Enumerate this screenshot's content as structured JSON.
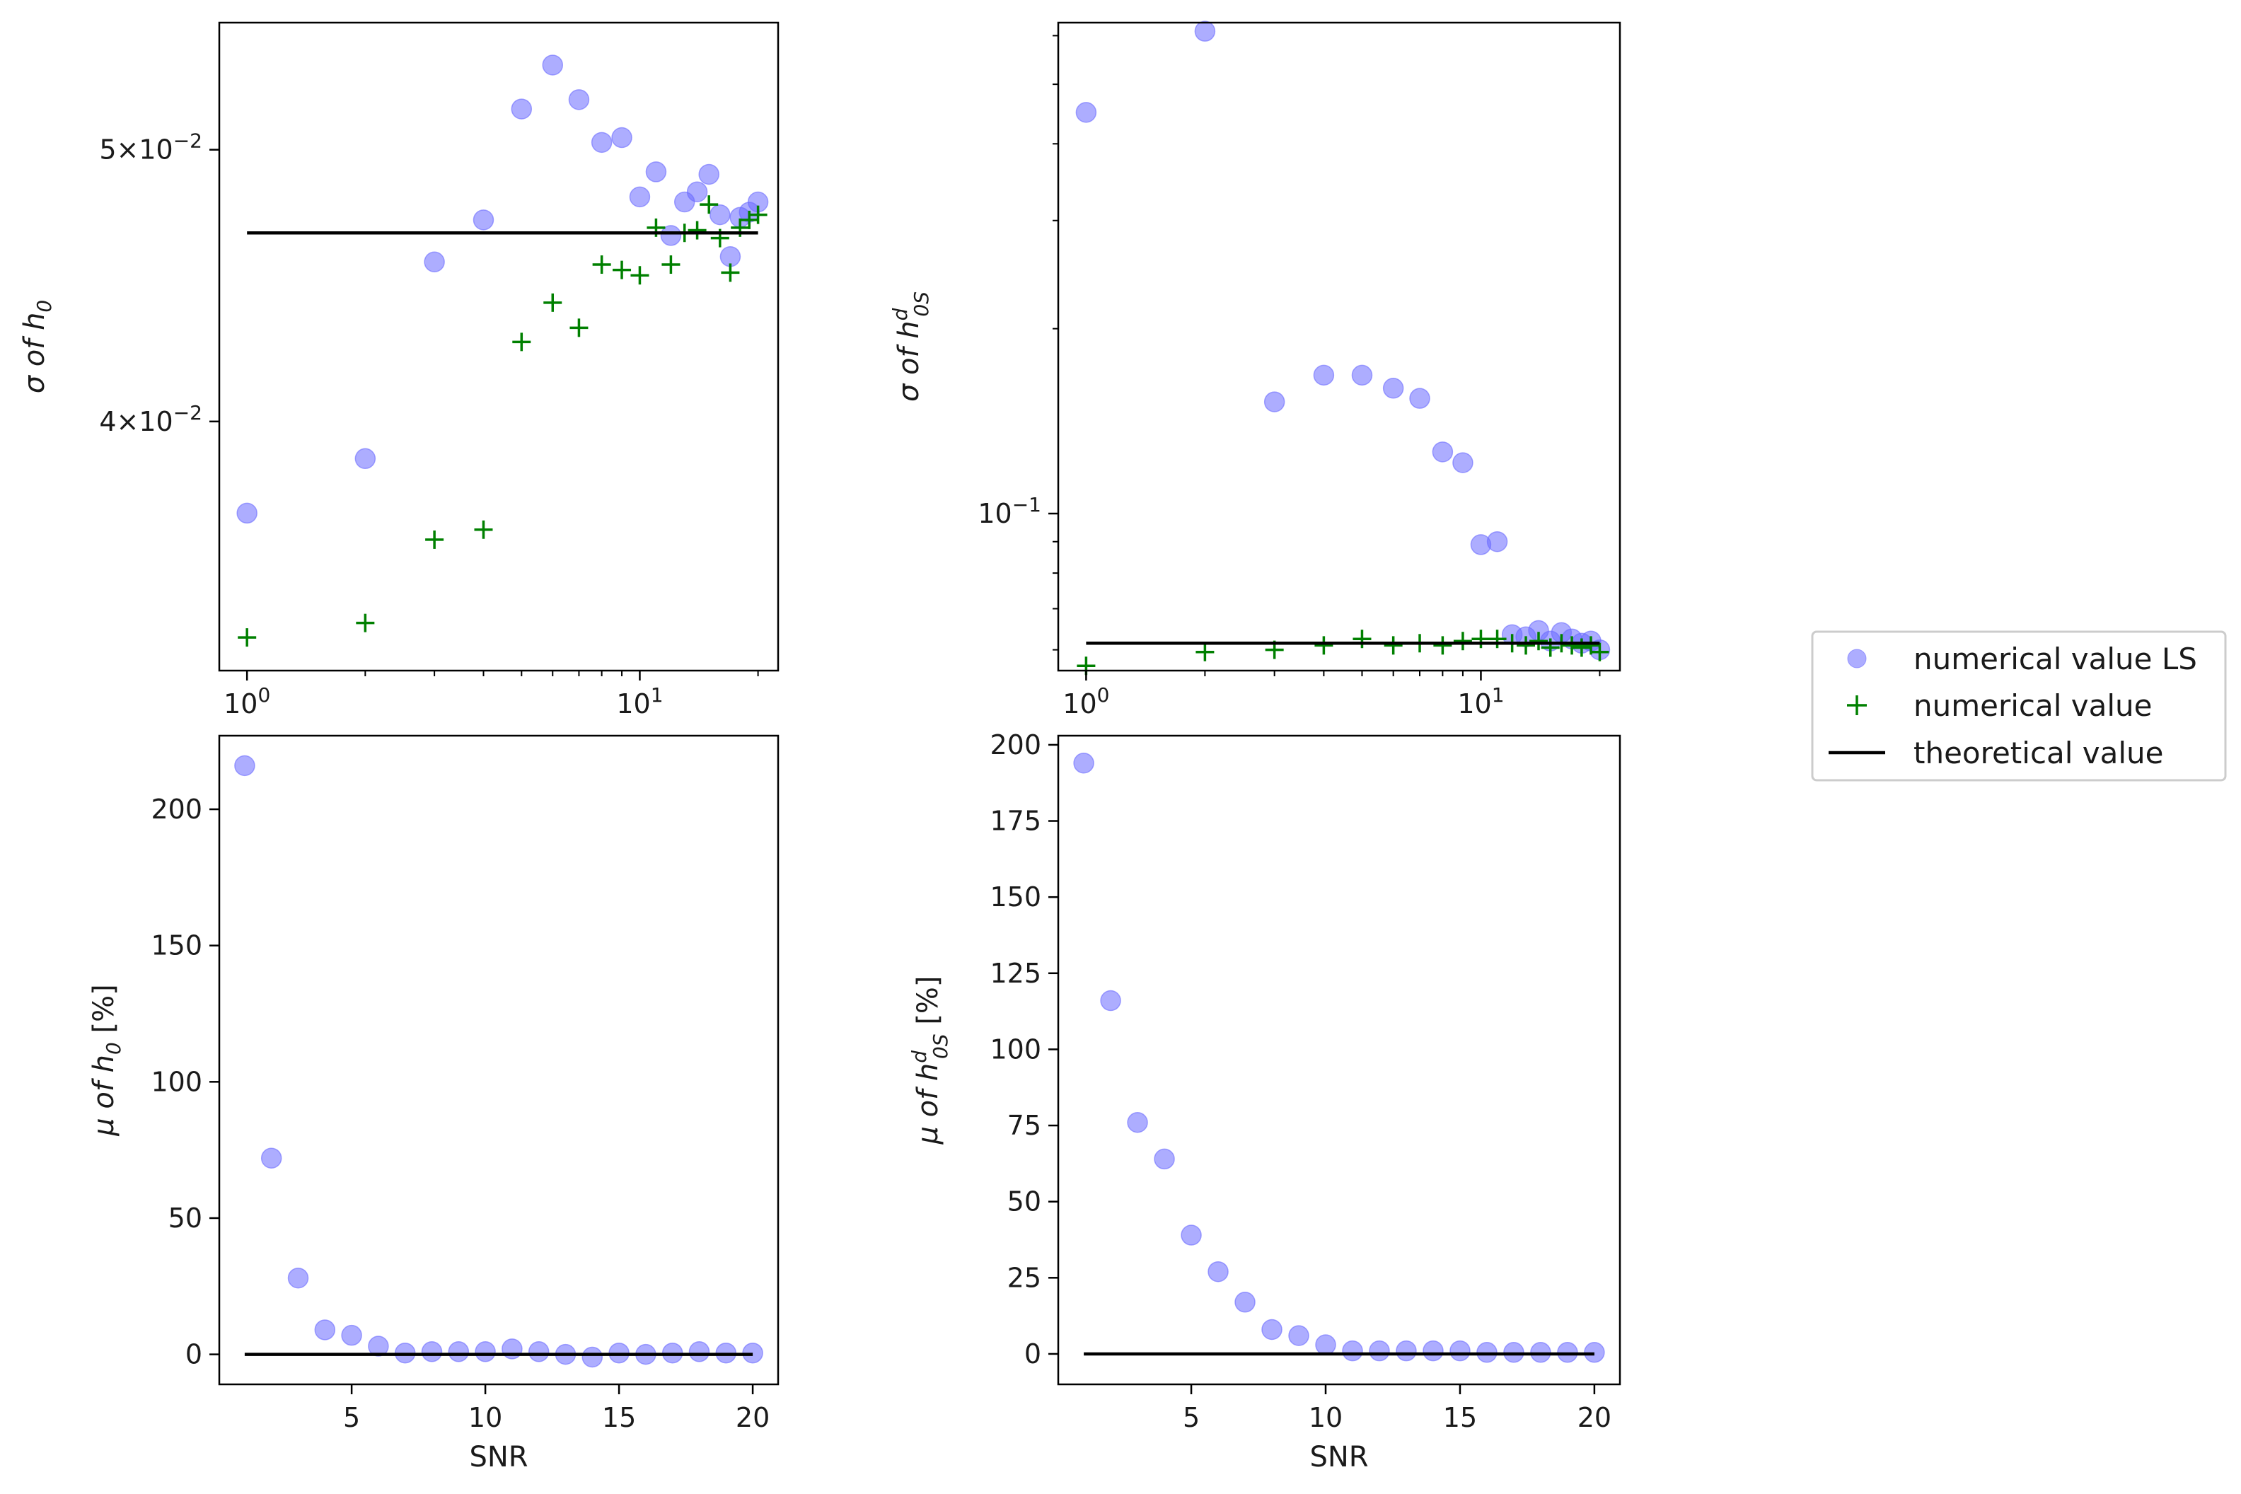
{
  "colors": {
    "ls_fill": "#6a6aff",
    "num_marker": "#008000",
    "theory_line": "#000000",
    "axes": "#000000",
    "background": "#ffffff"
  },
  "legend": {
    "entries": [
      "numerical value LS",
      "numerical value",
      "theoretical value"
    ],
    "placement": "right-center"
  },
  "chart_data": [
    {
      "id": "sigma-h0",
      "type": "scatter",
      "xscale": "log",
      "yscale": "log",
      "xlim": [
        0.85,
        22.5
      ],
      "ylim": [
        0.0326,
        0.0555
      ],
      "xticks": [
        {
          "v": 1,
          "base": "10",
          "exp": "0"
        },
        {
          "v": 10,
          "base": "10",
          "exp": "1"
        }
      ],
      "yticks": [
        {
          "v": 0.04,
          "label": "4×10",
          "exp": "−2"
        },
        {
          "v": 0.05,
          "label": "5×10",
          "exp": "−2"
        }
      ],
      "ylabel": {
        "pre": "σ of ",
        "sym": "h",
        "sub": "0",
        "sup": "",
        "post": ""
      },
      "xlabel": "",
      "series": [
        {
          "name": "numerical value LS",
          "marker": "circle",
          "x": [
            1,
            2,
            3,
            4,
            5,
            6,
            7,
            8,
            9,
            10,
            11,
            12,
            13,
            14,
            15,
            16,
            17,
            18,
            19,
            20
          ],
          "y": [
            0.0371,
            0.0388,
            0.0456,
            0.0472,
            0.0517,
            0.0536,
            0.0521,
            0.0503,
            0.0505,
            0.0481,
            0.0491,
            0.0466,
            0.0479,
            0.0483,
            0.049,
            0.0474,
            0.0458,
            0.0473,
            0.0475,
            0.0479
          ]
        },
        {
          "name": "numerical value",
          "marker": "plus",
          "x": [
            1,
            2,
            3,
            4,
            5,
            6,
            7,
            8,
            9,
            10,
            11,
            12,
            13,
            14,
            15,
            16,
            17,
            18,
            19,
            20
          ],
          "y": [
            0.0335,
            0.0339,
            0.0363,
            0.0366,
            0.0427,
            0.0441,
            0.0432,
            0.0455,
            0.0453,
            0.0451,
            0.0469,
            0.0455,
            0.0467,
            0.0468,
            0.0478,
            0.0465,
            0.0452,
            0.0469,
            0.0472,
            0.0474
          ]
        },
        {
          "name": "theoretical value",
          "marker": "line",
          "x": [
            1,
            20
          ],
          "y": [
            0.0467,
            0.0467
          ]
        }
      ]
    },
    {
      "id": "sigma-h0s",
      "type": "scatter",
      "xscale": "log",
      "yscale": "log",
      "xlim": [
        0.85,
        22.5
      ],
      "ylim": [
        0.0555,
        0.63
      ],
      "xticks": [
        {
          "v": 1,
          "base": "10",
          "exp": "0"
        },
        {
          "v": 10,
          "base": "10",
          "exp": "1"
        }
      ],
      "yticks": [
        {
          "v": 0.1,
          "label": "10",
          "exp": "−1"
        }
      ],
      "yminor": [
        0.06,
        0.07,
        0.08,
        0.09,
        0.2,
        0.3,
        0.4,
        0.5,
        0.6
      ],
      "ylabel": {
        "pre": "σ of ",
        "sym": "h",
        "sub": "0S",
        "sup": "d",
        "post": ""
      },
      "xlabel": "",
      "series": [
        {
          "name": "numerical value LS",
          "marker": "circle",
          "x": [
            1,
            2,
            3,
            4,
            5,
            6,
            7,
            8,
            9,
            10,
            11,
            12,
            13,
            14,
            15,
            16,
            17,
            18,
            19,
            20
          ],
          "y": [
            0.45,
            0.61,
            0.152,
            0.168,
            0.168,
            0.16,
            0.154,
            0.126,
            0.121,
            0.089,
            0.09,
            0.0635,
            0.063,
            0.0645,
            0.062,
            0.064,
            0.0625,
            0.0615,
            0.062,
            0.06
          ]
        },
        {
          "name": "numerical value",
          "marker": "plus",
          "x": [
            1,
            2,
            3,
            4,
            5,
            6,
            7,
            8,
            9,
            10,
            11,
            12,
            13,
            14,
            15,
            16,
            17,
            18,
            19,
            20
          ],
          "y": [
            0.0565,
            0.0595,
            0.06,
            0.061,
            0.0625,
            0.061,
            0.0615,
            0.061,
            0.062,
            0.0625,
            0.0625,
            0.0615,
            0.061,
            0.062,
            0.0605,
            0.0615,
            0.061,
            0.0605,
            0.061,
            0.0595
          ]
        },
        {
          "name": "theoretical value",
          "marker": "line",
          "x": [
            1,
            20
          ],
          "y": [
            0.0615,
            0.0615
          ]
        }
      ]
    },
    {
      "id": "mu-h0",
      "type": "scatter",
      "xscale": "linear",
      "yscale": "linear",
      "xlim": [
        0.05,
        20.95
      ],
      "ylim": [
        -11,
        227
      ],
      "xticks": [
        {
          "v": 5,
          "label": "5"
        },
        {
          "v": 10,
          "label": "10"
        },
        {
          "v": 15,
          "label": "15"
        },
        {
          "v": 20,
          "label": "20"
        }
      ],
      "yticks": [
        {
          "v": 0,
          "label": "0"
        },
        {
          "v": 50,
          "label": "50"
        },
        {
          "v": 100,
          "label": "100"
        },
        {
          "v": 150,
          "label": "150"
        },
        {
          "v": 200,
          "label": "200"
        }
      ],
      "ylabel": {
        "pre": "μ  of ",
        "sym": "h",
        "sub": "0",
        "sup": "",
        "post": "  [%]"
      },
      "xlabel": "SNR",
      "series": [
        {
          "name": "numerical value LS",
          "marker": "circle",
          "x": [
            1,
            2,
            3,
            4,
            5,
            6,
            7,
            8,
            9,
            10,
            11,
            12,
            13,
            14,
            15,
            16,
            17,
            18,
            19,
            20
          ],
          "y": [
            216,
            72,
            28,
            9,
            7,
            3,
            0.5,
            1,
            1,
            1,
            2,
            1,
            0,
            -1,
            0.5,
            0,
            0.5,
            1,
            0.5,
            0.5
          ]
        },
        {
          "name": "theoretical value",
          "marker": "line",
          "x": [
            1,
            20
          ],
          "y": [
            0,
            0
          ]
        }
      ]
    },
    {
      "id": "mu-h0s",
      "type": "scatter",
      "xscale": "linear",
      "yscale": "linear",
      "xlim": [
        0.05,
        20.95
      ],
      "ylim": [
        -10,
        203
      ],
      "xticks": [
        {
          "v": 5,
          "label": "5"
        },
        {
          "v": 10,
          "label": "10"
        },
        {
          "v": 15,
          "label": "15"
        },
        {
          "v": 20,
          "label": "20"
        }
      ],
      "yticks": [
        {
          "v": 0,
          "label": "0"
        },
        {
          "v": 25,
          "label": "25"
        },
        {
          "v": 50,
          "label": "50"
        },
        {
          "v": 75,
          "label": "75"
        },
        {
          "v": 100,
          "label": "100"
        },
        {
          "v": 125,
          "label": "125"
        },
        {
          "v": 150,
          "label": "150"
        },
        {
          "v": 175,
          "label": "175"
        },
        {
          "v": 200,
          "label": "200"
        }
      ],
      "ylabel": {
        "pre": "μ of ",
        "sym": "h",
        "sub": "0S",
        "sup": "d",
        "post": "  [%]"
      },
      "xlabel": "SNR",
      "series": [
        {
          "name": "numerical value LS",
          "marker": "circle",
          "x": [
            1,
            2,
            3,
            4,
            5,
            6,
            7,
            8,
            9,
            10,
            11,
            12,
            13,
            14,
            15,
            16,
            17,
            18,
            19,
            20
          ],
          "y": [
            194,
            116,
            76,
            64,
            39,
            27,
            17,
            8,
            6,
            3,
            1,
            1,
            1,
            1,
            1,
            0.5,
            0.5,
            0.5,
            0.5,
            0.5
          ]
        },
        {
          "name": "theoretical value",
          "marker": "line",
          "x": [
            1,
            20
          ],
          "y": [
            0,
            0
          ]
        }
      ]
    }
  ]
}
